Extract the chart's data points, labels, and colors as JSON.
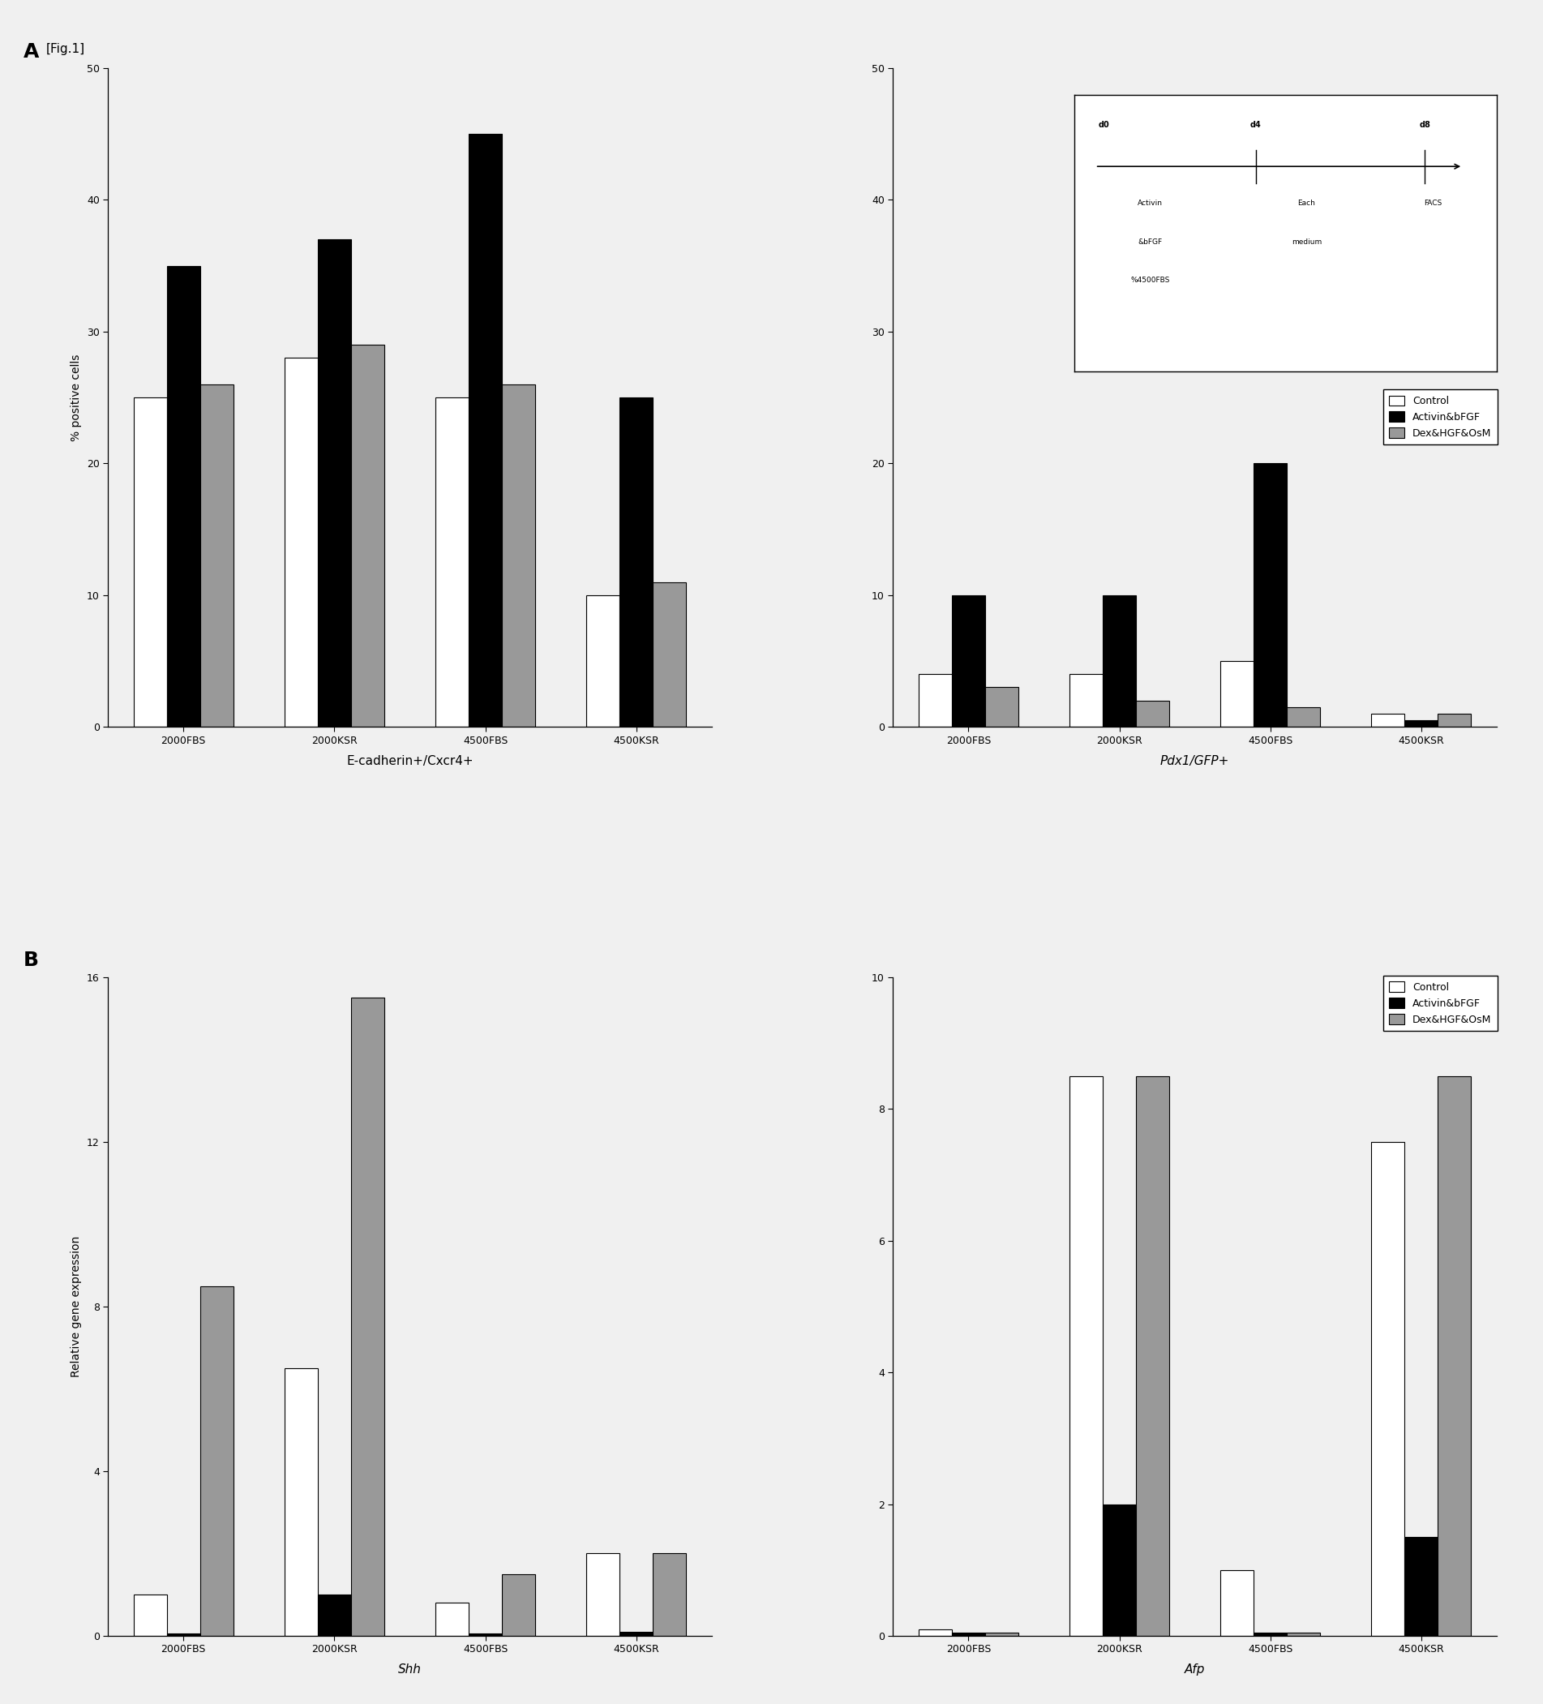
{
  "panel_A": {
    "ylabel": "% positive cells",
    "ylim": [
      0,
      50
    ],
    "yticks": [
      0,
      10,
      20,
      30,
      40,
      50
    ],
    "groups_left": [
      "2000FBS",
      "2000KSR",
      "4500FBS",
      "4500KSR"
    ],
    "groups_right": [
      "2000FBS",
      "2000KSR",
      "4500FBS",
      "4500KSR"
    ],
    "xlabel_left": "E-cadherin+/Cxcr4+",
    "xlabel_right": "Pdx1/GFP+",
    "data_left": {
      "Control": [
        25,
        28,
        25,
        10
      ],
      "Activin&bFGF": [
        35,
        37,
        45,
        25
      ],
      "Dex&HGF&OsM": [
        26,
        29,
        26,
        11
      ]
    },
    "data_right": {
      "Control": [
        4,
        4,
        5,
        1
      ],
      "Activin&bFGF": [
        10,
        10,
        20,
        0.5
      ],
      "Dex&HGF&OsM": [
        3,
        2,
        1.5,
        1
      ]
    }
  },
  "panel_B": {
    "ylabel": "Relative gene expression",
    "ylim_left": [
      0,
      16
    ],
    "yticks_left": [
      0,
      4,
      8,
      12,
      16
    ],
    "ylim_right": [
      0,
      10
    ],
    "yticks_right": [
      0,
      2,
      4,
      6,
      8,
      10
    ],
    "groups_left": [
      "2000FBS",
      "2000KSR",
      "4500FBS",
      "4500KSR"
    ],
    "groups_right": [
      "2000FBS",
      "2000KSR",
      "4500FBS",
      "4500KSR"
    ],
    "xlabel_left": "Shh",
    "xlabel_right": "Afp",
    "data_left": {
      "Control": [
        1.0,
        6.5,
        0.8,
        2.0
      ],
      "Activin&bFGF": [
        0.05,
        1.0,
        0.05,
        0.1
      ],
      "Dex&HGF&OsM": [
        8.5,
        15.5,
        1.5,
        2.0
      ]
    },
    "data_right": {
      "Control": [
        0.1,
        8.5,
        1.0,
        7.5
      ],
      "Activin&bFGF": [
        0.05,
        2.0,
        0.05,
        1.5
      ],
      "Dex&HGF&OsM": [
        0.05,
        8.5,
        0.05,
        8.5
      ]
    }
  },
  "legend_labels": [
    "Control",
    "Activin&bFGF",
    "Dex&HGF&OsM"
  ],
  "bar_colors": [
    "white",
    "black",
    "#999999"
  ],
  "bar_edgecolors": [
    "black",
    "black",
    "black"
  ],
  "bar_width": 0.22,
  "figure_label": "[Fig.1]",
  "bg_color": "#f0f0f0",
  "panel_label_A": "A",
  "panel_label_B": "B",
  "inset_text": {
    "d0": "d0",
    "d4": "d4",
    "d8": "d8",
    "line1a": "Activin",
    "line2a": "&bFGF",
    "line3a": "%4500FBS",
    "line1b": "Each",
    "line2b": "medium",
    "facs": "FACS"
  }
}
